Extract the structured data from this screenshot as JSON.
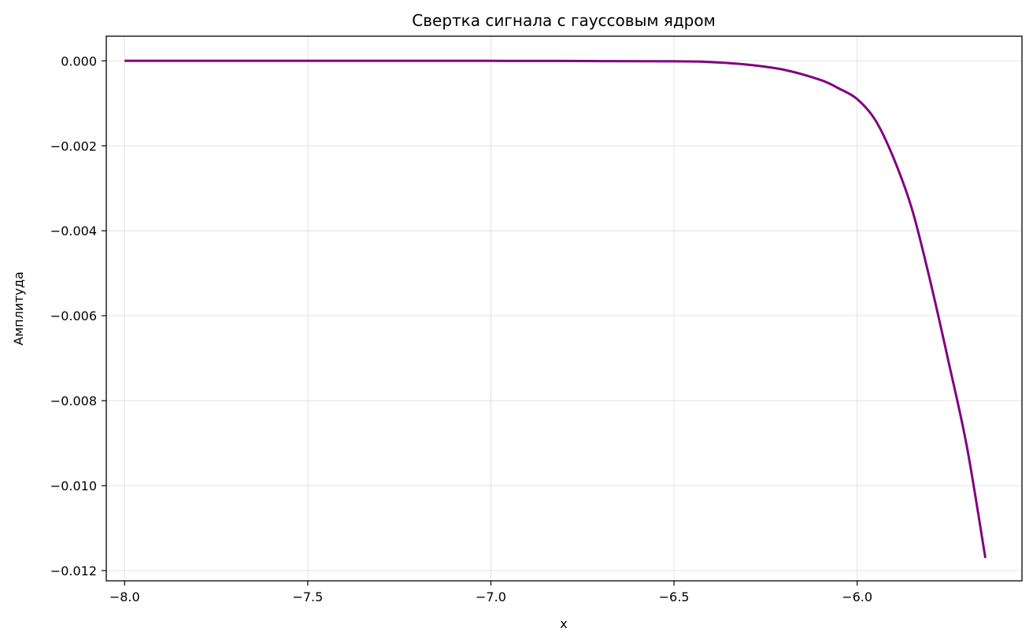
{
  "chart_data": {
    "type": "line",
    "title": "Свертка сигнала с гауссовым ядром",
    "xlabel": "x",
    "ylabel": "Амплитуда",
    "xlim": [
      -8.05,
      -5.55
    ],
    "ylim": [
      -0.01224,
      0.00058
    ],
    "xticks": [
      -8.0,
      -7.5,
      -7.0,
      -6.5,
      -6.0
    ],
    "xtick_labels": [
      "−8.0",
      "−7.5",
      "−7.0",
      "−6.5",
      "−6.0"
    ],
    "yticks": [
      0.0,
      -0.002,
      -0.004,
      -0.006,
      -0.008,
      -0.01,
      -0.012
    ],
    "ytick_labels": [
      "0.000",
      "−0.002",
      "−0.004",
      "−0.006",
      "−0.008",
      "−0.010",
      "−0.012"
    ],
    "grid": true,
    "series": [
      {
        "color": "#800080",
        "x": [
          -8.0,
          -7.5,
          -7.0,
          -6.5,
          -6.4,
          -6.3,
          -6.2,
          -6.1,
          -6.05,
          -6.0,
          -5.95,
          -5.9,
          -5.85,
          -5.8,
          -5.75,
          -5.7,
          -5.65
        ],
        "y": [
          0.0,
          0.0,
          0.0,
          -1e-05,
          -3e-05,
          -9e-05,
          -0.00021,
          -0.00045,
          -0.00065,
          -0.0009,
          -0.0014,
          -0.0023,
          -0.0035,
          -0.0052,
          -0.0071,
          -0.0091,
          -0.0117
        ]
      }
    ]
  }
}
